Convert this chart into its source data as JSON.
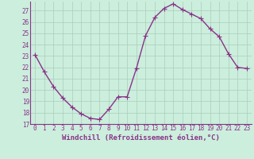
{
  "x": [
    0,
    1,
    2,
    3,
    4,
    5,
    6,
    7,
    8,
    9,
    10,
    11,
    12,
    13,
    14,
    15,
    16,
    17,
    18,
    19,
    20,
    21,
    22,
    23
  ],
  "y": [
    23.1,
    21.6,
    20.3,
    19.3,
    18.5,
    17.9,
    17.5,
    17.4,
    18.3,
    19.4,
    19.4,
    21.9,
    24.8,
    26.4,
    27.2,
    27.6,
    27.1,
    26.7,
    26.3,
    25.4,
    24.7,
    23.2,
    22.0,
    21.9
  ],
  "line_color": "#883388",
  "marker": "+",
  "marker_size": 4,
  "bg_color": "#cceedd",
  "grid_color": "#aaccbb",
  "ylim": [
    17,
    27.8
  ],
  "xlim": [
    -0.5,
    23.5
  ],
  "yticks": [
    17,
    18,
    19,
    20,
    21,
    22,
    23,
    24,
    25,
    26,
    27
  ],
  "xticks": [
    0,
    1,
    2,
    3,
    4,
    5,
    6,
    7,
    8,
    9,
    10,
    11,
    12,
    13,
    14,
    15,
    16,
    17,
    18,
    19,
    20,
    21,
    22,
    23
  ],
  "tick_color": "#883388",
  "tick_fontsize": 5.5,
  "xlabel": "Windchill (Refroidissement éolien,°C)",
  "xlabel_fontsize": 6.5,
  "line_width": 1.0
}
